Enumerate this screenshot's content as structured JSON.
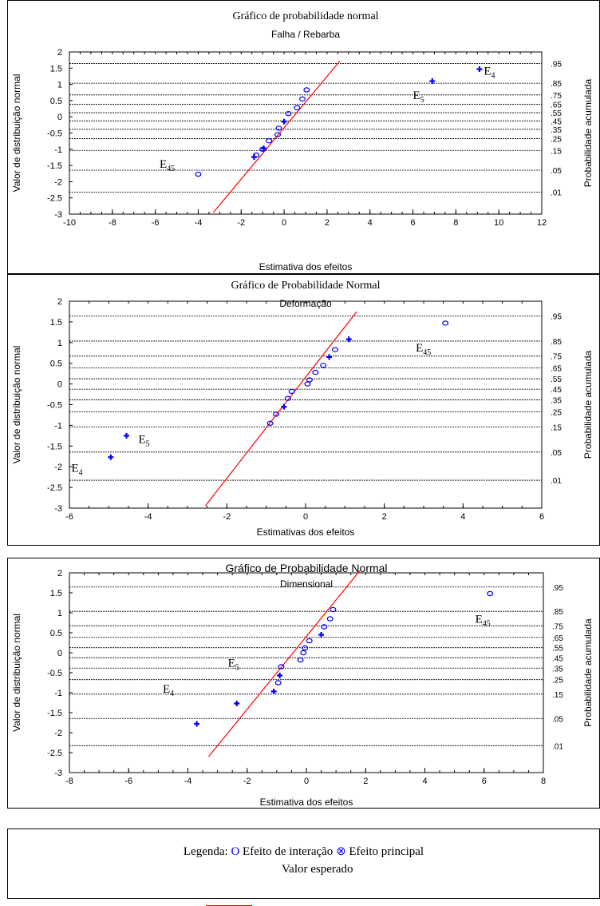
{
  "legend": {
    "prefix": "Legenda:",
    "interaction_symbol": "O",
    "interaction_label": "Efeito de interação",
    "main_symbol": "⊗",
    "main_label": "Efeito principal",
    "expected_label": "Valor esperado"
  },
  "colors": {
    "interaction": "#0000ff",
    "main": "#0000ff",
    "expected_line": "#ff0000",
    "grid": "#000000"
  },
  "chart_data": [
    {
      "type": "scatter",
      "title": "Gráfico de probabilidade normal",
      "subtitle": "Falha / Rebarba",
      "title_font": "serif",
      "xlabel": "Estimativa dos efeitos",
      "ylabel": "Valor de distribuição normal",
      "y2label": "Probabilidade acumulada",
      "xlim": [
        -10,
        12
      ],
      "ylim": [
        -3,
        2
      ],
      "xticks": [
        -10,
        -8,
        -6,
        -4,
        -2,
        0,
        2,
        4,
        6,
        8,
        10,
        12
      ],
      "yticks": [
        2,
        1.5,
        1,
        0.5,
        0,
        -0.5,
        -1,
        -1.5,
        -2,
        -2.5,
        -3
      ],
      "ytick_labels": [
        "2",
        "1.5",
        "1",
        "0.5",
        "0",
        "-0.5",
        "-1",
        "-1.5",
        "-2",
        "-2.5",
        "-3"
      ],
      "prob_ticks": [
        {
          "label": ".95",
          "z": 1.645
        },
        {
          "label": ".85",
          "z": 1.036
        },
        {
          "label": ".75",
          "z": 0.674
        },
        {
          "label": ".65",
          "z": 0.385
        },
        {
          "label": ".55",
          "z": 0.126
        },
        {
          "label": ".45",
          "z": -0.126
        },
        {
          "label": ".35",
          "z": -0.385
        },
        {
          "label": ".25",
          "z": -0.674
        },
        {
          "label": ".15",
          "z": -1.036
        },
        {
          "label": ".05",
          "z": -1.645
        },
        {
          "label": ".01",
          "z": -2.326
        }
      ],
      "expected_line": {
        "x1": -3.3,
        "y1": -2.95,
        "x2": 2.6,
        "y2": 1.72
      },
      "series": [
        {
          "kind": "interaction",
          "points": [
            {
              "x": -4.0,
              "y": -1.77
            },
            {
              "x": -0.7,
              "y": -0.74
            },
            {
              "x": -0.3,
              "y": -0.55
            },
            {
              "x": -0.25,
              "y": -0.35
            },
            {
              "x": 0.2,
              "y": 0.1
            },
            {
              "x": 0.6,
              "y": 0.28
            },
            {
              "x": 0.85,
              "y": 0.55
            },
            {
              "x": 1.05,
              "y": 0.83
            },
            {
              "x": -1.3,
              "y": -1.18
            },
            {
              "x": -1.0,
              "y": -1.0
            }
          ]
        },
        {
          "kind": "main",
          "points": [
            {
              "x": -1.4,
              "y": -1.24
            },
            {
              "x": -0.95,
              "y": -0.97
            },
            {
              "x": 0.0,
              "y": -0.15
            },
            {
              "x": 6.9,
              "y": 1.1
            },
            {
              "x": 9.1,
              "y": 1.47
            }
          ]
        }
      ],
      "annotations": [
        {
          "text": "E",
          "sub": "45",
          "x": -5.8,
          "y": -1.57
        },
        {
          "text": "E",
          "sub": "5",
          "x": 6.0,
          "y": 0.55
        },
        {
          "text": "E",
          "sub": "4",
          "x": 9.3,
          "y": 1.3
        }
      ]
    },
    {
      "type": "scatter",
      "title": "Gráfico de Probabilidade Normal",
      "subtitle": "Deformação",
      "title_font": "serif",
      "xlabel": "Estimativas dos efeitos",
      "ylabel": "Valor de distribuição normal",
      "y2label": "Probabilidade acumulada",
      "xlim": [
        -6,
        6
      ],
      "ylim": [
        -3,
        2
      ],
      "xticks": [
        -6,
        -4,
        -2,
        0,
        2,
        4,
        6
      ],
      "yticks": [
        2,
        1.5,
        1,
        0.5,
        0,
        -0.5,
        -1,
        -1.5,
        -2,
        -2.5,
        -3
      ],
      "ytick_labels": [
        "2",
        "1.5",
        "1",
        "0.5",
        "0",
        "-0.5",
        "-1",
        "-1.5",
        "-2",
        "-2.5",
        "-3"
      ],
      "prob_ticks": [
        {
          "label": ".95",
          "z": 1.645
        },
        {
          "label": ".85",
          "z": 1.036
        },
        {
          "label": ".75",
          "z": 0.674
        },
        {
          "label": ".65",
          "z": 0.385
        },
        {
          "label": ".55",
          "z": 0.126
        },
        {
          "label": ".45",
          "z": -0.126
        },
        {
          "label": ".35",
          "z": -0.385
        },
        {
          "label": ".25",
          "z": -0.674
        },
        {
          "label": ".15",
          "z": -1.036
        },
        {
          "label": ".05",
          "z": -1.645
        },
        {
          "label": ".01",
          "z": -2.326
        }
      ],
      "expected_line": {
        "x1": -2.55,
        "y1": -2.95,
        "x2": 1.3,
        "y2": 1.75
      },
      "series": [
        {
          "kind": "interaction",
          "points": [
            {
              "x": -0.9,
              "y": -0.95
            },
            {
              "x": -0.75,
              "y": -0.73
            },
            {
              "x": -0.45,
              "y": -0.35
            },
            {
              "x": -0.35,
              "y": -0.18
            },
            {
              "x": 0.05,
              "y": 0.0
            },
            {
              "x": 0.1,
              "y": 0.1
            },
            {
              "x": 0.25,
              "y": 0.28
            },
            {
              "x": 0.45,
              "y": 0.45
            },
            {
              "x": 0.75,
              "y": 0.83
            },
            {
              "x": 3.55,
              "y": 1.47
            }
          ]
        },
        {
          "kind": "main",
          "points": [
            {
              "x": -4.95,
              "y": -1.77
            },
            {
              "x": -4.55,
              "y": -1.25
            },
            {
              "x": -0.55,
              "y": -0.55
            },
            {
              "x": 0.6,
              "y": 0.65
            },
            {
              "x": 1.1,
              "y": 1.08
            }
          ]
        }
      ],
      "annotations": [
        {
          "text": "E",
          "sub": "5",
          "x": -4.25,
          "y": -1.43
        },
        {
          "text": "E",
          "sub": "4",
          "x": -5.95,
          "y": -2.12
        },
        {
          "text": "E",
          "sub": "45",
          "x": 2.8,
          "y": 0.78
        }
      ]
    },
    {
      "type": "scatter",
      "title": "Gráfico de Probabilidade Normal",
      "subtitle": "Dimensional",
      "title_font": "sans",
      "xlabel": "Estimativa dos efeitos",
      "ylabel": "Valor de distribuição normal",
      "y2label": "Probabilidade acumulada",
      "xlim": [
        -8,
        8
      ],
      "ylim": [
        -3,
        2
      ],
      "xticks": [
        -8,
        -6,
        -4,
        -2,
        0,
        2,
        4,
        6,
        8
      ],
      "yticks": [
        2,
        1.5,
        1,
        0.5,
        0,
        -0.5,
        -1,
        -1.5,
        -2,
        -2.5,
        -3
      ],
      "ytick_labels": [
        "2",
        "1.5",
        "1",
        "0.5",
        "0",
        "-0.5",
        "-1",
        "-1.5",
        "-2",
        "-2.5",
        "-3"
      ],
      "prob_ticks": [
        {
          "label": ".95",
          "z": 1.645
        },
        {
          "label": ".85",
          "z": 1.036
        },
        {
          "label": ".75",
          "z": 0.674
        },
        {
          "label": ".65",
          "z": 0.385
        },
        {
          "label": ".55",
          "z": 0.126
        },
        {
          "label": ".45",
          "z": -0.126
        },
        {
          "label": ".35",
          "z": -0.385
        },
        {
          "label": ".25",
          "z": -0.674
        },
        {
          "label": ".15",
          "z": -1.036
        },
        {
          "label": ".05",
          "z": -1.645
        },
        {
          "label": ".01",
          "z": -2.326
        }
      ],
      "expected_line": {
        "x1": -3.3,
        "y1": -2.6,
        "x2": 1.8,
        "y2": 2.05
      },
      "series": [
        {
          "kind": "interaction",
          "points": [
            {
              "x": -0.95,
              "y": -0.75
            },
            {
              "x": -0.85,
              "y": -0.35
            },
            {
              "x": -0.2,
              "y": -0.18
            },
            {
              "x": -0.1,
              "y": 0.0
            },
            {
              "x": -0.05,
              "y": 0.12
            },
            {
              "x": 0.1,
              "y": 0.3
            },
            {
              "x": 0.6,
              "y": 0.65
            },
            {
              "x": 0.8,
              "y": 0.85
            },
            {
              "x": 0.9,
              "y": 1.08
            },
            {
              "x": 6.2,
              "y": 1.48
            }
          ]
        },
        {
          "kind": "main",
          "points": [
            {
              "x": -3.7,
              "y": -1.78
            },
            {
              "x": -2.35,
              "y": -1.27
            },
            {
              "x": -1.1,
              "y": -0.97
            },
            {
              "x": -0.9,
              "y": -0.57
            },
            {
              "x": 0.5,
              "y": 0.45
            }
          ]
        }
      ],
      "annotations": [
        {
          "text": "E",
          "sub": "5",
          "x": -2.65,
          "y": -0.35
        },
        {
          "text": "E",
          "sub": "4",
          "x": -4.85,
          "y": -1.0
        },
        {
          "text": "E",
          "sub": "45",
          "x": 5.7,
          "y": 0.75
        }
      ]
    }
  ]
}
